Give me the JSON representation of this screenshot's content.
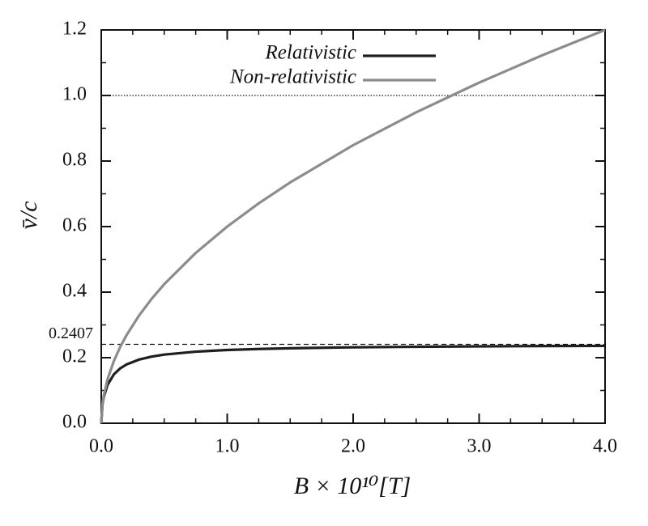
{
  "chart_data": {
    "type": "line",
    "xlabel": "B × 10¹⁰[T]",
    "ylabel": "v̄/c",
    "x": [
      0,
      0.01,
      0.02,
      0.05,
      0.1,
      0.15,
      0.2,
      0.3,
      0.4,
      0.5,
      0.75,
      1.0,
      1.25,
      1.5,
      2.0,
      2.5,
      3.0,
      3.5,
      4.0
    ],
    "series": [
      {
        "name": "Relativistic",
        "color": "#1f1f1f",
        "values": [
          0,
          0.0582,
          0.0801,
          0.1172,
          0.149,
          0.1672,
          0.1792,
          0.1942,
          0.2033,
          0.2094,
          0.2184,
          0.2234,
          0.2265,
          0.2287,
          0.2316,
          0.2333,
          0.2345,
          0.2354,
          0.236
        ]
      },
      {
        "name": "Non-relativistic",
        "color": "#8c8c8c",
        "values": [
          0,
          0.06,
          0.0849,
          0.1342,
          0.1897,
          0.2324,
          0.2683,
          0.3286,
          0.3795,
          0.4243,
          0.5196,
          0.6,
          0.6708,
          0.7348,
          0.8485,
          0.9487,
          1.0392,
          1.1225,
          1.2
        ]
      }
    ],
    "xlim": [
      0,
      4
    ],
    "ylim": [
      0,
      1.2
    ],
    "xticks": [
      {
        "value": 0,
        "label": "0.0"
      },
      {
        "value": 1,
        "label": "1.0"
      },
      {
        "value": 2,
        "label": "2.0"
      },
      {
        "value": 3,
        "label": "3.0"
      },
      {
        "value": 4,
        "label": "4.0"
      }
    ],
    "yticks": [
      {
        "value": 0,
        "label": "0.0"
      },
      0.2,
      0.4,
      0.6,
      0.8,
      {
        "value": 1,
        "label": "1.0"
      },
      1.2
    ],
    "xminorticks": [
      0.25,
      0.5,
      0.75,
      1.25,
      1.5,
      1.75,
      2.25,
      2.5,
      2.75,
      3.25,
      3.5,
      3.75
    ],
    "yminorticks": [
      0.1,
      0.3,
      0.5,
      0.7,
      0.9,
      1.1
    ],
    "hlines": [
      {
        "value": 1,
        "style": "dotted"
      },
      {
        "value": 0.2407,
        "label": "0.2407",
        "style": "dashed"
      }
    ],
    "legend": "upper center",
    "grid": false
  }
}
